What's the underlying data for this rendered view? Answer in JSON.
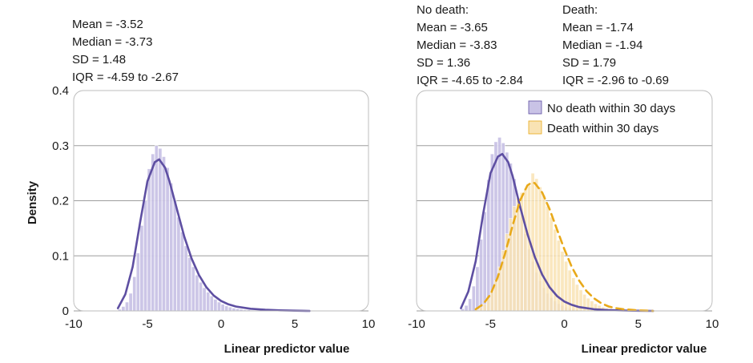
{
  "chart_data": [
    {
      "type": "histogram+density",
      "ylabel": "Density",
      "xlabel": "Linear predictor value",
      "xlim": [
        -10,
        10
      ],
      "ylim": [
        0,
        0.4
      ],
      "x_ticks": [
        "-10",
        "-5",
        "0",
        "5",
        "10"
      ],
      "y_ticks": [
        "0",
        "0.1",
        "0.2",
        "0.3",
        "0.4"
      ],
      "grid": "horizontal",
      "stats": [
        "Mean = -3.52",
        "Median = -3.73",
        "SD = 1.48",
        "IQR = -4.59 to -2.67"
      ],
      "series": [
        {
          "color": "#5e4fa2",
          "fill": "#c9c3e6",
          "line_style": "solid",
          "bins": [
            [
              -7.0,
              0.003
            ],
            [
              -6.75,
              0.008
            ],
            [
              -6.5,
              0.016
            ],
            [
              -6.25,
              0.032
            ],
            [
              -6.0,
              0.062
            ],
            [
              -5.75,
              0.105
            ],
            [
              -5.5,
              0.155
            ],
            [
              -5.25,
              0.2
            ],
            [
              -5.0,
              0.258
            ],
            [
              -4.75,
              0.285
            ],
            [
              -4.5,
              0.3
            ],
            [
              -4.25,
              0.295
            ],
            [
              -4.0,
              0.28
            ],
            [
              -3.75,
              0.26
            ],
            [
              -3.5,
              0.232
            ],
            [
              -3.25,
              0.2
            ],
            [
              -3.0,
              0.17
            ],
            [
              -2.75,
              0.143
            ],
            [
              -2.5,
              0.118
            ],
            [
              -2.25,
              0.097
            ],
            [
              -2.0,
              0.08
            ],
            [
              -1.75,
              0.065
            ],
            [
              -1.5,
              0.052
            ],
            [
              -1.25,
              0.042
            ],
            [
              -1.0,
              0.034
            ],
            [
              -0.75,
              0.027
            ],
            [
              -0.5,
              0.021
            ],
            [
              -0.25,
              0.016
            ],
            [
              0.0,
              0.012
            ],
            [
              0.25,
              0.009
            ],
            [
              0.5,
              0.007
            ],
            [
              0.75,
              0.005
            ],
            [
              1.0,
              0.004
            ],
            [
              1.25,
              0.003
            ],
            [
              1.5,
              0.002
            ],
            [
              1.75,
              0.002
            ],
            [
              2.0,
              0.001
            ]
          ],
          "curve": [
            [
              -7.0,
              0.005
            ],
            [
              -6.5,
              0.03
            ],
            [
              -6.0,
              0.08
            ],
            [
              -5.5,
              0.16
            ],
            [
              -5.0,
              0.235
            ],
            [
              -4.5,
              0.27
            ],
            [
              -4.2,
              0.275
            ],
            [
              -3.8,
              0.26
            ],
            [
              -3.5,
              0.235
            ],
            [
              -3.0,
              0.185
            ],
            [
              -2.5,
              0.135
            ],
            [
              -2.0,
              0.095
            ],
            [
              -1.5,
              0.065
            ],
            [
              -1.0,
              0.043
            ],
            [
              -0.5,
              0.028
            ],
            [
              0.0,
              0.018
            ],
            [
              0.5,
              0.012
            ],
            [
              1.0,
              0.008
            ],
            [
              2.0,
              0.004
            ],
            [
              3.0,
              0.002
            ],
            [
              4.0,
              0.001
            ],
            [
              5.0,
              0.0005
            ],
            [
              6.0,
              0.0
            ]
          ]
        }
      ]
    },
    {
      "type": "histogram+density",
      "xlabel": "Linear predictor value",
      "xlim": [
        -10,
        10
      ],
      "ylim": [
        0,
        0.4
      ],
      "x_ticks": [
        "-10",
        "-5",
        "0",
        "5",
        "10"
      ],
      "grid": "horizontal",
      "stats_groups": [
        [
          "No death:",
          "Mean = -3.65",
          "Median = -3.83",
          "SD = 1.36",
          "IQR = -4.65 to -2.84"
        ],
        [
          "Death:",
          "Mean = -1.74",
          "Median = -1.94",
          "SD = 1.79",
          "IQR = -2.96 to -0.69"
        ]
      ],
      "legend_position": "top-right",
      "series": [
        {
          "name": "No death within 30 days",
          "color": "#5e4fa2",
          "fill": "#c9c3e6",
          "line_style": "solid",
          "bins": [
            [
              -7.0,
              0.004
            ],
            [
              -6.75,
              0.01
            ],
            [
              -6.5,
              0.022
            ],
            [
              -6.25,
              0.045
            ],
            [
              -6.0,
              0.08
            ],
            [
              -5.75,
              0.13
            ],
            [
              -5.5,
              0.18
            ],
            [
              -5.25,
              0.238
            ],
            [
              -5.0,
              0.285
            ],
            [
              -4.75,
              0.307
            ],
            [
              -4.5,
              0.315
            ],
            [
              -4.25,
              0.305
            ],
            [
              -4.0,
              0.288
            ],
            [
              -3.75,
              0.268
            ],
            [
              -3.5,
              0.24
            ],
            [
              -3.25,
              0.205
            ],
            [
              -3.0,
              0.17
            ],
            [
              -2.75,
              0.14
            ],
            [
              -2.5,
              0.112
            ],
            [
              -2.25,
              0.09
            ],
            [
              -2.0,
              0.07
            ],
            [
              -1.75,
              0.055
            ],
            [
              -1.5,
              0.042
            ],
            [
              -1.25,
              0.032
            ],
            [
              -1.0,
              0.024
            ],
            [
              -0.75,
              0.018
            ],
            [
              -0.5,
              0.013
            ],
            [
              -0.25,
              0.01
            ],
            [
              0.0,
              0.007
            ],
            [
              0.25,
              0.005
            ],
            [
              0.5,
              0.003
            ],
            [
              0.75,
              0.002
            ],
            [
              1.0,
              0.001
            ]
          ],
          "curve": [
            [
              -7.0,
              0.005
            ],
            [
              -6.5,
              0.035
            ],
            [
              -6.0,
              0.09
            ],
            [
              -5.5,
              0.175
            ],
            [
              -5.0,
              0.25
            ],
            [
              -4.5,
              0.28
            ],
            [
              -4.2,
              0.285
            ],
            [
              -3.8,
              0.27
            ],
            [
              -3.5,
              0.245
            ],
            [
              -3.0,
              0.19
            ],
            [
              -2.5,
              0.14
            ],
            [
              -2.0,
              0.098
            ],
            [
              -1.5,
              0.066
            ],
            [
              -1.0,
              0.043
            ],
            [
              -0.5,
              0.027
            ],
            [
              0.0,
              0.017
            ],
            [
              0.5,
              0.011
            ],
            [
              1.0,
              0.007
            ],
            [
              2.0,
              0.003
            ],
            [
              3.0,
              0.0015
            ],
            [
              4.0,
              0.0007
            ],
            [
              5.0,
              0.0003
            ],
            [
              6.0,
              0.0
            ]
          ]
        },
        {
          "name": "Death within 30 days",
          "color": "#e8a91a",
          "fill": "#f9e3b4",
          "line_style": "dashed",
          "bins": [
            [
              -6.0,
              0.002
            ],
            [
              -5.75,
              0.006
            ],
            [
              -5.5,
              0.012
            ],
            [
              -5.25,
              0.022
            ],
            [
              -5.0,
              0.036
            ],
            [
              -4.75,
              0.055
            ],
            [
              -4.5,
              0.08
            ],
            [
              -4.25,
              0.11
            ],
            [
              -4.0,
              0.14
            ],
            [
              -3.75,
              0.168
            ],
            [
              -3.5,
              0.19
            ],
            [
              -3.25,
              0.205
            ],
            [
              -3.0,
              0.215
            ],
            [
              -2.75,
              0.222
            ],
            [
              -2.5,
              0.228
            ],
            [
              -2.25,
              0.25
            ],
            [
              -2.0,
              0.24
            ],
            [
              -1.75,
              0.225
            ],
            [
              -1.5,
              0.21
            ],
            [
              -1.25,
              0.19
            ],
            [
              -1.0,
              0.17
            ],
            [
              -0.75,
              0.148
            ],
            [
              -0.5,
              0.128
            ],
            [
              -0.25,
              0.108
            ],
            [
              0.0,
              0.09
            ],
            [
              0.25,
              0.074
            ],
            [
              0.5,
              0.06
            ],
            [
              0.75,
              0.048
            ],
            [
              1.0,
              0.038
            ],
            [
              1.25,
              0.03
            ],
            [
              1.5,
              0.023
            ],
            [
              1.75,
              0.018
            ],
            [
              2.0,
              0.013
            ],
            [
              2.25,
              0.01
            ],
            [
              2.5,
              0.007
            ],
            [
              2.75,
              0.005
            ],
            [
              3.0,
              0.004
            ],
            [
              3.25,
              0.003
            ],
            [
              3.5,
              0.002
            ],
            [
              3.75,
              0.002
            ],
            [
              4.0,
              0.001
            ],
            [
              4.25,
              0.001
            ],
            [
              4.5,
              0.001
            ]
          ],
          "curve": [
            [
              -6.0,
              0.003
            ],
            [
              -5.5,
              0.012
            ],
            [
              -5.0,
              0.03
            ],
            [
              -4.5,
              0.062
            ],
            [
              -4.0,
              0.105
            ],
            [
              -3.5,
              0.155
            ],
            [
              -3.0,
              0.2
            ],
            [
              -2.5,
              0.228
            ],
            [
              -2.2,
              0.233
            ],
            [
              -2.0,
              0.232
            ],
            [
              -1.5,
              0.215
            ],
            [
              -1.0,
              0.185
            ],
            [
              -0.5,
              0.148
            ],
            [
              0.0,
              0.112
            ],
            [
              0.5,
              0.08
            ],
            [
              1.0,
              0.055
            ],
            [
              1.5,
              0.036
            ],
            [
              2.0,
              0.023
            ],
            [
              2.5,
              0.014
            ],
            [
              3.0,
              0.008
            ],
            [
              3.5,
              0.005
            ],
            [
              4.0,
              0.003
            ],
            [
              5.0,
              0.001
            ],
            [
              6.0,
              0.0
            ]
          ]
        }
      ]
    }
  ]
}
